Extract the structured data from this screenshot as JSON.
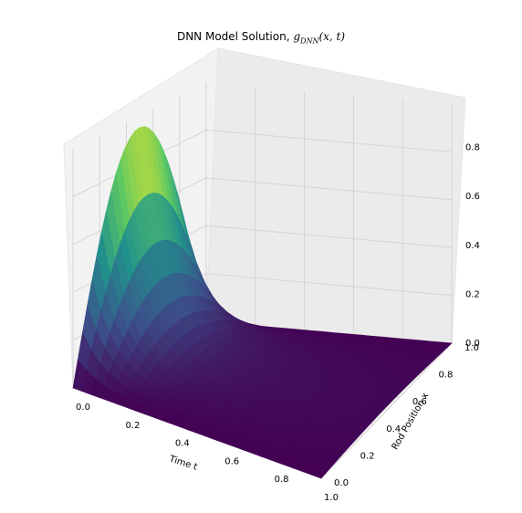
{
  "chart_data": {
    "type": "surface",
    "title_prefix": "DNN Model Solution,",
    "title_fn": "g",
    "title_sub": "DNN",
    "title_args": "(x, t)",
    "xlabel": "Time t",
    "ylabel": "Rod Position x",
    "zlabel": "",
    "xlim": [
      0.0,
      1.0
    ],
    "ylim": [
      0.0,
      1.0
    ],
    "zlim": [
      0.0,
      1.0
    ],
    "x_ticks": [
      "0.0",
      "0.2",
      "0.4",
      "0.6",
      "0.8",
      "1.0"
    ],
    "y_ticks": [
      "0.0",
      "0.2",
      "0.4",
      "0.6",
      "0.8",
      "1.0"
    ],
    "z_ticks": [
      "0.0",
      "0.2",
      "0.4",
      "0.6",
      "0.8"
    ],
    "grid": true,
    "colormap": "viridis",
    "surface": {
      "t": [
        0.0,
        0.2,
        0.4,
        0.6,
        0.8,
        1.0
      ],
      "x": [
        0.0,
        0.2,
        0.4,
        0.6,
        0.8,
        1.0
      ],
      "g": [
        [
          0.0,
          0.59,
          0.95,
          0.95,
          0.59,
          0.0
        ],
        [
          0.0,
          0.08,
          0.13,
          0.13,
          0.08,
          0.0
        ],
        [
          0.0,
          0.05,
          0.08,
          0.08,
          0.05,
          0.0
        ],
        [
          0.0,
          0.03,
          0.05,
          0.05,
          0.03,
          0.0
        ],
        [
          0.0,
          0.02,
          0.03,
          0.03,
          0.02,
          0.0
        ],
        [
          0.0,
          0.01,
          0.02,
          0.02,
          0.01,
          0.0
        ]
      ]
    }
  }
}
